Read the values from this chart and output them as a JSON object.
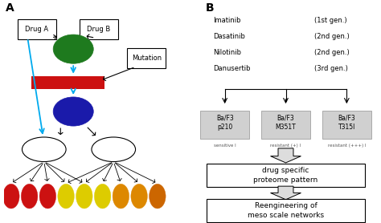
{
  "panel_a_label": "A",
  "panel_b_label": "B",
  "drug_a_label": "Drug A",
  "drug_b_label": "Drug B",
  "mutation_label": "Mutation",
  "drugs_text": [
    "Imatinib",
    "Dasatinib",
    "Nilotinib",
    "Danusertib"
  ],
  "gens_text": [
    "(1st gen.)",
    "(2nd gen.)",
    "(2nd gen.)",
    "(3rd gen.)"
  ],
  "cell_labels": [
    "Ba/F3\np210",
    "Ba/F3\nM351T",
    "Ba/F3\nT315I"
  ],
  "sensitivity_labels": [
    "sensitive I",
    "resistant (+) I",
    "resistant (+++) I"
  ],
  "box1_text": "drug specific\nproteome pattern",
  "box2_text": "Reengineering of\nmeso scale networks",
  "green_color": "#1e7a1e",
  "blue_color": "#1a1aaa",
  "red_color": "#cc1111",
  "cyan_color": "#00aaee",
  "cell_box_color": "#d0d0d0",
  "bg_color": "#ffffff"
}
